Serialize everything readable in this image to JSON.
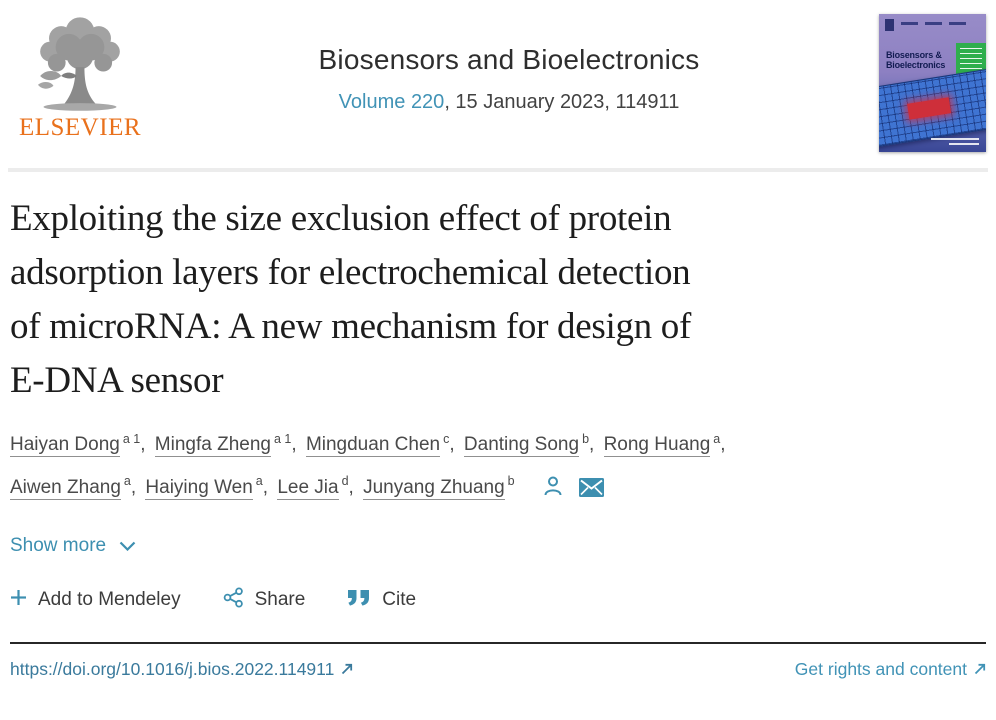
{
  "colors": {
    "link_teal": "#3d8fb0",
    "doi_teal": "#3a7a9c",
    "elsevier_orange": "#e9711c",
    "title_text": "#1d1d1d",
    "body_text": "#4a4a4a",
    "cover_green": "#2fae4d",
    "cover_chip_blue": "#3f74d2",
    "cover_chip_red": "#ce2f3a"
  },
  "journal": {
    "publisher_wordmark": "ELSEVIER",
    "name": "Biosensors and Bioelectronics",
    "volume_link": "Volume 220",
    "issue_suffix": ", 15 January 2023, 114911",
    "cover_title": "Biosensors & Bioelectronics"
  },
  "article": {
    "title_lines": [
      "Exploiting the size exclusion effect of protein",
      "adsorption layers for electrochemical detection",
      "of microRNA: A new mechanism for design of",
      "E-DNA sensor"
    ]
  },
  "authors": {
    "line1": [
      {
        "name": "Haiyan Dong",
        "sup": "a 1",
        "sep": ", "
      },
      {
        "name": "Mingfa Zheng",
        "sup": "a 1",
        "sep": ", "
      },
      {
        "name": "Mingduan Chen",
        "sup": "c",
        "sep": ", "
      },
      {
        "name": "Danting Song",
        "sup": "b",
        "sep": ", "
      },
      {
        "name": "Rong Huang",
        "sup": "a",
        "sep": ","
      }
    ],
    "line2": [
      {
        "name": "Aiwen Zhang",
        "sup": "a",
        "sep": ", "
      },
      {
        "name": "Haiying Wen",
        "sup": "a",
        "sep": ", "
      },
      {
        "name": "Lee Jia",
        "sup": "d",
        "sep": ", "
      },
      {
        "name": "Junyang Zhuang",
        "sup": "b",
        "sep": ""
      }
    ]
  },
  "controls": {
    "show_more": "Show more"
  },
  "actions": {
    "mendeley": "Add to Mendeley",
    "share": "Share",
    "cite": "Cite"
  },
  "footer": {
    "doi": "https://doi.org/10.1016/j.bios.2022.114911",
    "rights": "Get rights and content"
  },
  "icons": {
    "publisher_logo": "elsevier-tree-icon",
    "corresponding_author": "person-icon",
    "email": "envelope-icon",
    "show_more": "chevron-down-icon",
    "mendeley": "plus-icon",
    "share": "share-icon",
    "cite": "quote-icon",
    "external": "external-link-icon"
  }
}
